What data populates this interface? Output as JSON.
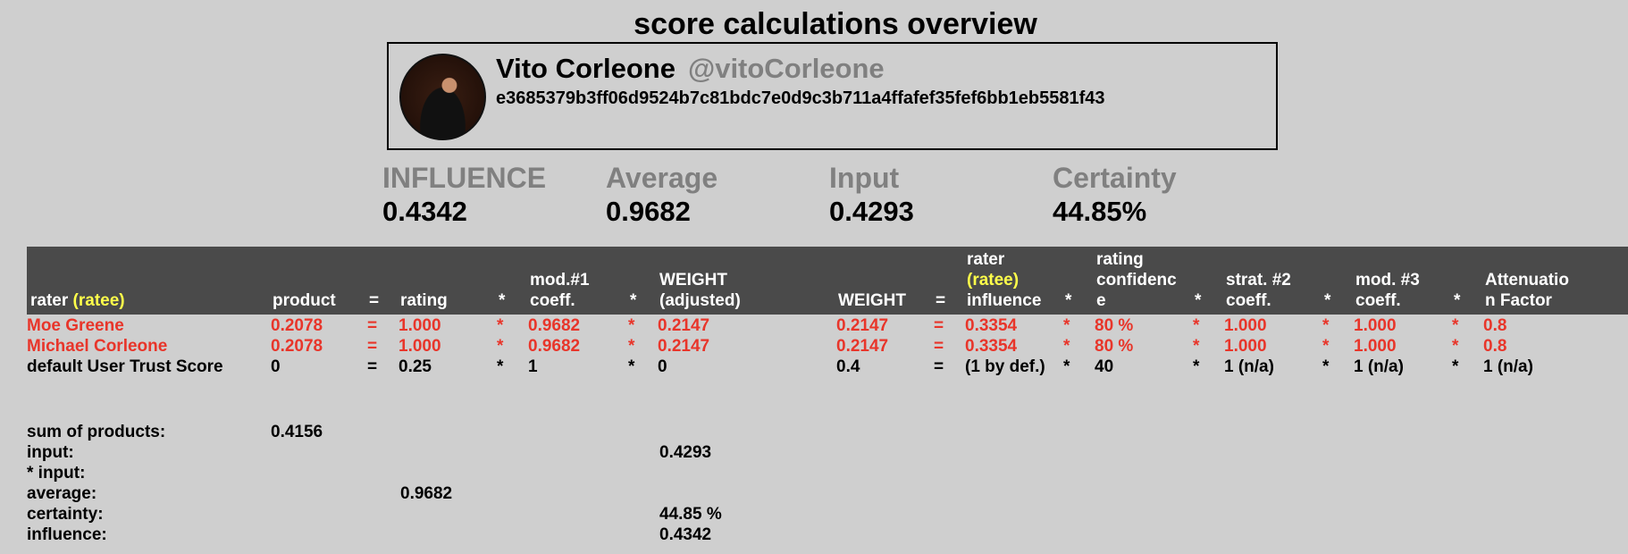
{
  "page": {
    "title": "score calculations overview"
  },
  "profile": {
    "name": "Vito Corleone",
    "handle": "@vitoCorleone",
    "pubkey": "e3685379b3ff06d9524b7c81bdc7e0d9c3b711a4ffafef35fef6bb1eb5581f43"
  },
  "metrics": [
    {
      "label": "INFLUENCE",
      "value": "0.4342"
    },
    {
      "label": "Average",
      "value": "0.9682"
    },
    {
      "label": "Input",
      "value": "0.4293"
    },
    {
      "label": "Certainty",
      "value": "44.85%"
    }
  ],
  "table": {
    "headers": {
      "rater": "rater",
      "ratee_tag": "(ratee)",
      "product": "product",
      "eq": "=",
      "rating": "rating",
      "star": "*",
      "mod1": "mod.#1\ncoeff.",
      "weight_adj": "WEIGHT\n(adjusted)",
      "weight": "WEIGHT",
      "rater_influence_top": "rater",
      "rater_influence_ratee": "(ratee)",
      "rater_influence_bottom": "influence",
      "rating_confidence": "rating\nconfidenc\ne",
      "strat2": "strat. #2\ncoeff.",
      "mod3": "mod. #3\ncoeff.",
      "attenuation": "Attenuatio\nn Factor"
    },
    "rows": [
      {
        "rater": "Moe Greene",
        "product": "0.2078",
        "eq": "=",
        "rating": "1.000",
        "star": "*",
        "mod1": "0.9682",
        "weight_adj": "0.2147",
        "weight": "0.2147",
        "influence": "0.3354",
        "confidence": "80 %",
        "strat2": "1.000",
        "mod3": "1.000",
        "attenuation": "0.8"
      },
      {
        "rater": "Michael Corleone",
        "product": "0.2078",
        "eq": "=",
        "rating": "1.000",
        "star": "*",
        "mod1": "0.9682",
        "weight_adj": "0.2147",
        "weight": "0.2147",
        "influence": "0.3354",
        "confidence": "80 %",
        "strat2": "1.000",
        "mod3": "1.000",
        "attenuation": "0.8"
      },
      {
        "rater": "default User Trust Score",
        "product": "0",
        "eq": "=",
        "rating": "0.25",
        "star": "*",
        "mod1": "1",
        "weight_adj": "0",
        "weight": "0.4",
        "influence": "(1 by def.)",
        "confidence": "40",
        "strat2": "1 (n/a)",
        "mod3": "1 (n/a)",
        "attenuation": "1 (n/a)"
      }
    ]
  },
  "summary": {
    "sum_of_products_label": "sum of products:",
    "sum_of_products_value": "0.4156",
    "input_label": "input:",
    "input_value": "0.4293",
    "star_input_label": "* input:",
    "average_label": "average:",
    "average_value": "0.9682",
    "certainty_label": "certainty:",
    "certainty_value": "44.85 %",
    "influence_label": "influence:",
    "influence_value": "0.4342"
  },
  "colors": {
    "accent_red": "#e8352a",
    "ratee_yellow": "#ffff4a",
    "header_bg": "#4a4a4a",
    "background": "#cfcfcf"
  }
}
